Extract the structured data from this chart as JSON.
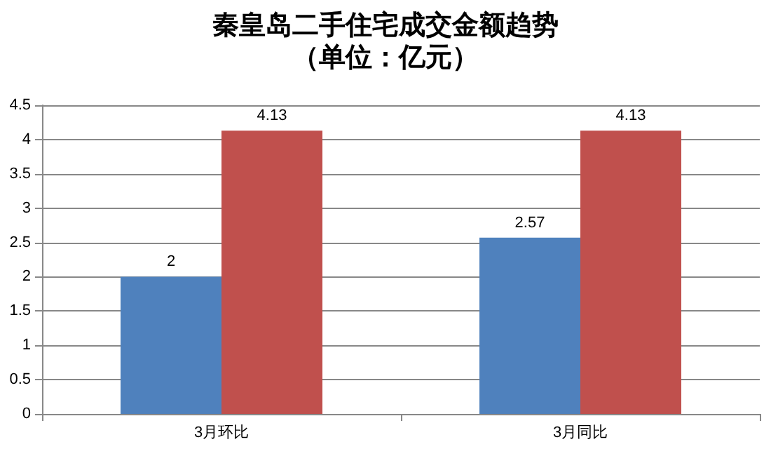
{
  "chart_data": {
    "type": "bar",
    "title": "秦皇岛二手住宅成交金额趋势",
    "subtitle": "（单位：亿元）",
    "categories": [
      "3月环比",
      "3月同比"
    ],
    "series": [
      {
        "color": "#4f81bd",
        "values": [
          2,
          2.57
        ]
      },
      {
        "color": "#c0504d",
        "values": [
          4.13,
          4.13
        ]
      }
    ],
    "ylim": [
      0,
      4.5
    ],
    "yticks": [
      0,
      0.5,
      1,
      1.5,
      2,
      2.5,
      3,
      3.5,
      4,
      4.5
    ],
    "grid": "y",
    "data_labels": true
  }
}
